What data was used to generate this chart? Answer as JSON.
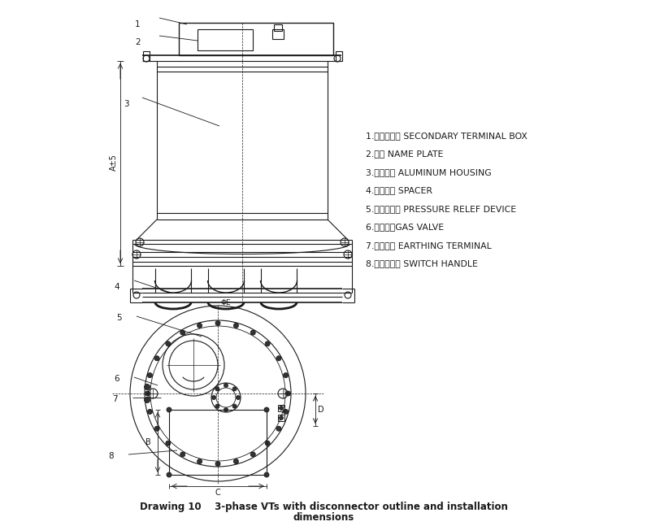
{
  "title_line1": "Drawing 10    3-phase VTs with disconnector outline and installation",
  "title_line2": "dimensions",
  "legend_items": [
    "1.二次接线盒 SECONDARY TERMINAL BOX",
    "2.铭牌 NAME PLATE",
    "3.铸铝壳体 ALUMINUM HOUSING",
    "4.绸缘盘子 SPACER",
    "5.压力释放阀 PRESSURE RELEF DEVICE",
    "6.充气阀门GAS VALVE",
    "7.接地端子 EARTHING TERMINAL",
    "8.开关控制杆 SWITCH HANDLE"
  ],
  "bg_color": "#ffffff",
  "line_color": "#1a1a1a",
  "text_color": "#1a1a1a"
}
